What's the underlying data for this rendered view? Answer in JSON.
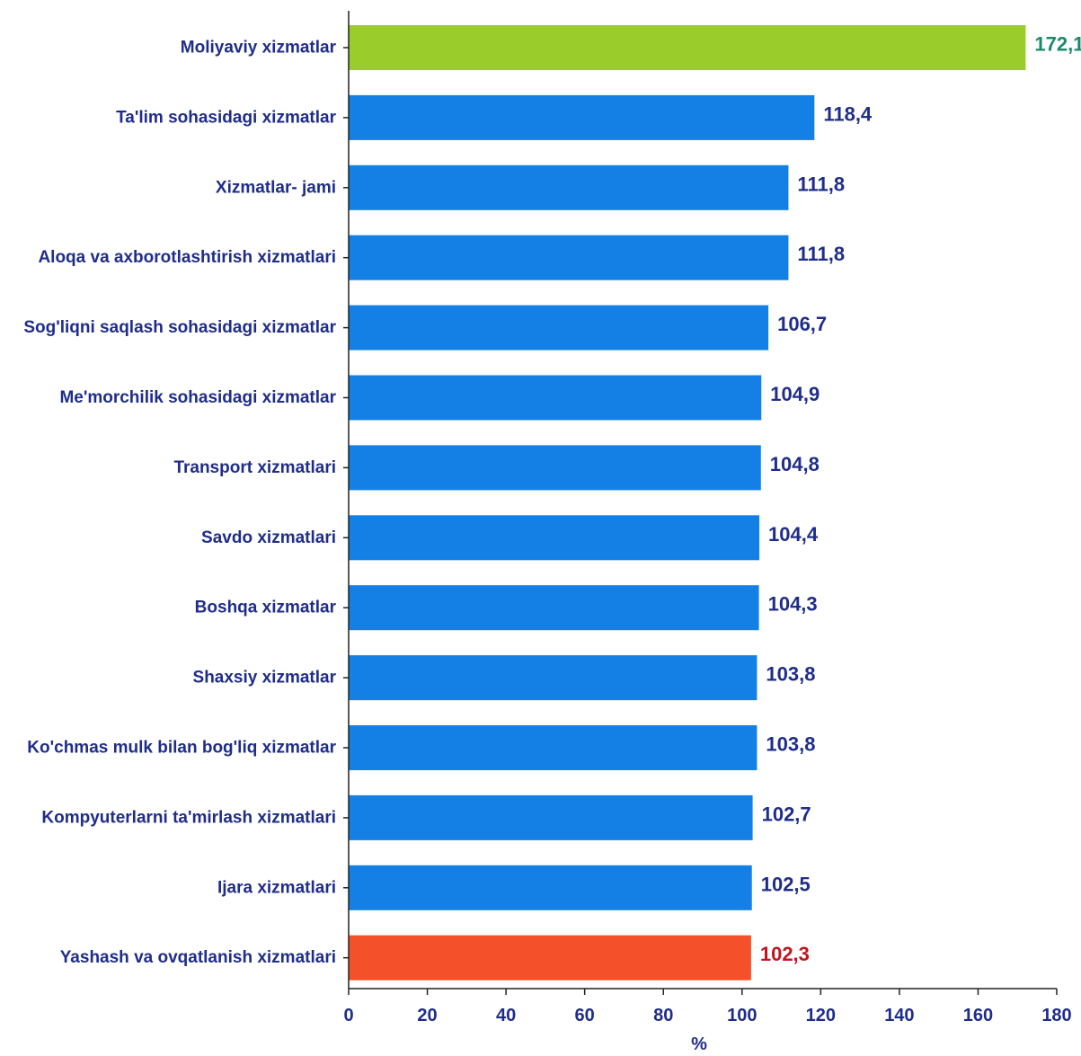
{
  "chart_data": {
    "type": "bar",
    "orientation": "horizontal",
    "categories": [
      "Moliyaviy xizmatlar",
      "Ta'lim sohasidagi xizmatlar",
      "Xizmatlar- jami",
      "Aloqa va axborotlashtirish xizmatlari",
      "Sog'liqni saqlash sohasidagi xizmatlar",
      "Me'morchilik sohasidagi xizmatlar",
      "Transport xizmatlari",
      "Savdo xizmatlari",
      "Boshqa xizmatlar",
      "Shaxsiy xizmatlar",
      "Ko'chmas mulk bilan bog'liq xizmatlar",
      "Kompyuterlarni ta'mirlash xizmatlari",
      "Ijara xizmatlari",
      "Yashash va ovqatlanish xizmatlari"
    ],
    "values": [
      172.1,
      118.4,
      111.8,
      111.8,
      106.7,
      104.9,
      104.8,
      104.4,
      104.3,
      103.8,
      103.8,
      102.7,
      102.5,
      102.3
    ],
    "value_labels": [
      "172,1",
      "118,4",
      "111,8",
      "111,8",
      "106,7",
      "104,9",
      "104,8",
      "104,4",
      "104,3",
      "103,8",
      "103,8",
      "102,7",
      "102,5",
      "102,3"
    ],
    "xlabel": "%",
    "xlim": [
      0,
      180
    ],
    "xticks": [
      0,
      20,
      40,
      60,
      80,
      100,
      120,
      140,
      160,
      180
    ],
    "grid": false,
    "colors": {
      "default_bar": "#1480E6",
      "highest_bar": "#9ACD2C",
      "lowest_bar": "#F4502A",
      "category_text": "#1F2D8A",
      "value_text": "#1F2D8A",
      "highest_value_text": "#1A8A6E",
      "lowest_value_text": "#C0141E",
      "axis": "#222222"
    }
  }
}
